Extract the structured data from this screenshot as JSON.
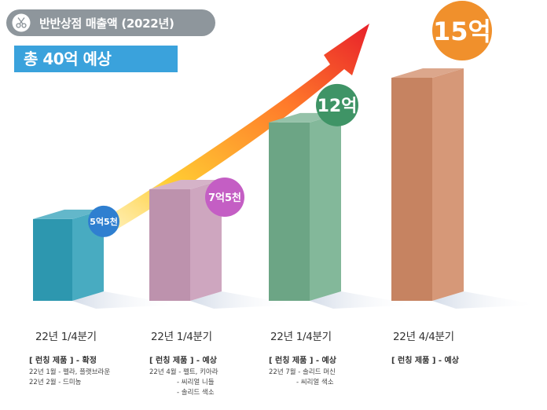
{
  "header": {
    "title": "반반상점 매출액 (2022년)",
    "logo_icon": "scissors-circle-icon"
  },
  "banner": {
    "text": "총 40억 예상"
  },
  "chart_data": {
    "type": "bar",
    "categories": [
      "22년 1/4분기",
      "22년 1/4분기",
      "22년 1/4분기",
      "22년 4/4분기"
    ],
    "values": [
      5.5,
      7.5,
      12,
      15
    ],
    "value_labels": [
      "5억5천",
      "7억5천",
      "12억",
      "15억"
    ],
    "unit": "억",
    "colors": [
      "#2f9fb8",
      "#c79ab6",
      "#72ae8c",
      "#d08a66"
    ],
    "bubble_colors": [
      "#2f7fd0",
      "#c45ec4",
      "#3f9466",
      "#f0902c"
    ],
    "trend_arrow": true
  },
  "products": [
    {
      "head": "[ 런칭 제품 ] - 확정",
      "lines": [
        "22년 1월 - 펠라, 플랫브라운",
        "22년 2월 - 드미농"
      ]
    },
    {
      "head": "[ 런칭 제품 ] - 예상",
      "lines": [
        "22년 4월 - 펠트, 키아라",
        "- 씨리얼 니들",
        "- 솔리드 색소"
      ]
    },
    {
      "head": "[ 런칭 제품 ] - 예상",
      "lines": [
        "22년 7월 - 솔리드 머신",
        "- 씨리얼 색소"
      ]
    },
    {
      "head": "[ 런칭 제품 ] - 예상",
      "lines": []
    }
  ]
}
